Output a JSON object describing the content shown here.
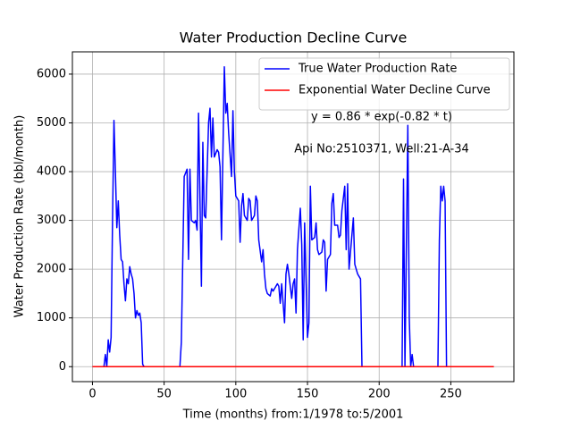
{
  "chart_data": {
    "type": "line",
    "title": "Water Production Decline Curve",
    "xlabel": "Time (months) from:1/1978 to:5/2001",
    "ylabel": "Water Production Rate (bbl/month)",
    "annotations": [
      "y = 0.86 * exp(-0.82 * t)",
      "Api No:2510371, Well:21-A-34"
    ],
    "xlim": [
      -14,
      294
    ],
    "ylim": [
      -307,
      6457
    ],
    "xticks": [
      0,
      50,
      100,
      150,
      200,
      250
    ],
    "yticks": [
      0,
      1000,
      2000,
      3000,
      4000,
      5000,
      6000
    ],
    "grid": true,
    "legend": "upper right",
    "series": [
      {
        "name": "True Water Production Rate",
        "color": "#0000ff",
        "x": [
          0,
          8,
          9,
          10,
          11,
          12,
          13,
          14,
          15,
          16,
          17,
          18,
          19,
          20,
          21,
          22,
          23,
          24,
          25,
          26,
          27,
          28,
          29,
          30,
          31,
          32,
          33,
          34,
          35,
          36,
          61,
          62,
          64,
          66,
          67,
          68,
          69,
          71,
          72,
          73,
          74,
          76,
          77,
          78,
          79,
          81,
          82,
          83,
          84,
          85,
          87,
          88,
          89,
          90,
          92,
          93,
          94,
          95,
          97,
          98,
          99,
          100,
          102,
          103,
          104,
          105,
          106,
          108,
          109,
          110,
          111,
          113,
          114,
          115,
          116,
          118,
          119,
          120,
          121,
          122,
          124,
          125,
          126,
          127,
          129,
          130,
          131,
          132,
          134,
          135,
          136,
          137,
          139,
          140,
          141,
          142,
          143,
          145,
          146,
          147,
          148,
          150,
          151,
          152,
          153,
          155,
          156,
          157,
          158,
          160,
          161,
          162,
          163,
          164,
          166,
          167,
          168,
          169,
          171,
          172,
          173,
          174,
          176,
          177,
          178,
          179,
          181,
          182,
          183,
          184,
          185,
          187,
          188,
          216,
          217,
          218,
          219,
          220,
          221,
          222,
          223,
          224,
          241,
          242,
          243,
          244,
          245,
          246,
          247,
          280
        ],
        "values": [
          0,
          0,
          250,
          0,
          550,
          300,
          600,
          3000,
          5050,
          4000,
          2850,
          3400,
          2700,
          2200,
          2150,
          1700,
          1350,
          1800,
          1700,
          2050,
          1900,
          1800,
          1500,
          1000,
          1150,
          1050,
          1100,
          900,
          50,
          0,
          0,
          500,
          3900,
          4050,
          2200,
          4050,
          3000,
          2950,
          3000,
          2800,
          5200,
          1650,
          4600,
          3100,
          3050,
          5000,
          5300,
          4300,
          5100,
          4300,
          4450,
          4400,
          4100,
          2600,
          6150,
          5200,
          5400,
          4800,
          3900,
          5250,
          4000,
          3500,
          3400,
          2550,
          3300,
          3550,
          3100,
          3000,
          3450,
          3400,
          3000,
          3100,
          3500,
          3400,
          2600,
          2150,
          2400,
          1900,
          1600,
          1500,
          1450,
          1600,
          1550,
          1600,
          1700,
          1650,
          1300,
          1700,
          900,
          1900,
          2100,
          1900,
          1400,
          1700,
          1800,
          1100,
          2400,
          3250,
          2500,
          550,
          2950,
          600,
          900,
          3700,
          2600,
          2650,
          2950,
          2400,
          2300,
          2350,
          2600,
          2550,
          1550,
          2200,
          2300,
          3350,
          3550,
          2900,
          2900,
          2650,
          2700,
          3200,
          3700,
          2400,
          3750,
          2000,
          2700,
          3050,
          2100,
          2000,
          1900,
          1800,
          0,
          0,
          3850,
          0,
          2500,
          4950,
          1000,
          0,
          250,
          0,
          0,
          2600,
          3700,
          3400,
          3700,
          3400,
          0,
          0
        ]
      },
      {
        "name": "Exponential Water Decline Curve",
        "color": "#ff0000",
        "x": [
          0,
          280
        ],
        "values": [
          0.86,
          0
        ]
      }
    ]
  }
}
